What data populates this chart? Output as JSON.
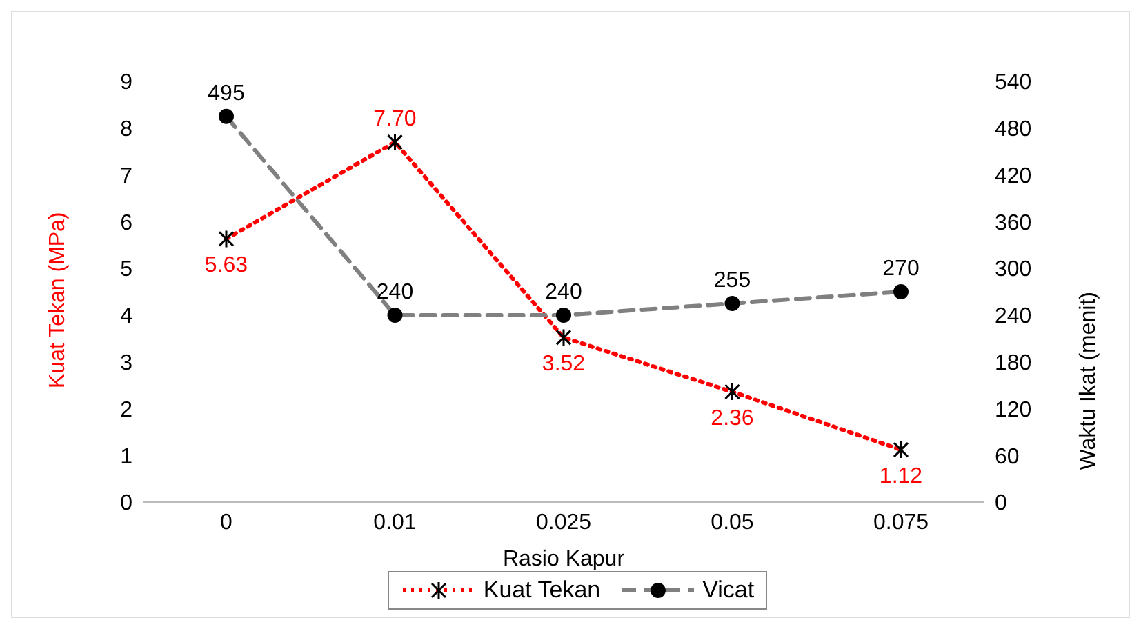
{
  "chart_data": {
    "type": "line",
    "xlabel": "Rasio Kapur",
    "ylabel": "Kuat Tekan (MPa)",
    "y2label": "Waktu Ikat (menit)",
    "categories": [
      "0",
      "0.01",
      "0.025",
      "0.05",
      "0.075"
    ],
    "series": [
      {
        "name": "Kuat Tekan",
        "color": "#ff0000",
        "values": [
          5.63,
          7.7,
          3.52,
          2.36,
          1.12
        ],
        "value_labels": [
          "5.63",
          "7.70",
          "3.52",
          "2.36",
          "1.12"
        ],
        "marker": "cross",
        "line_style": "dotted"
      },
      {
        "name": "Vicat",
        "color": "#808080",
        "axis": "y2",
        "values": [
          495,
          240,
          240,
          255,
          270
        ],
        "value_labels": [
          "495",
          "240",
          "240",
          "255",
          "270"
        ],
        "marker": "circle",
        "line_style": "dashed"
      }
    ],
    "ylim": [
      0,
      9
    ],
    "yticks": [
      0,
      1,
      2,
      3,
      4,
      5,
      6,
      7,
      8,
      9
    ],
    "y2lim": [
      0,
      540
    ],
    "y2ticks": [
      0,
      60,
      120,
      180,
      240,
      300,
      360,
      420,
      480,
      540
    ],
    "grid": false,
    "legend": "bottom"
  }
}
